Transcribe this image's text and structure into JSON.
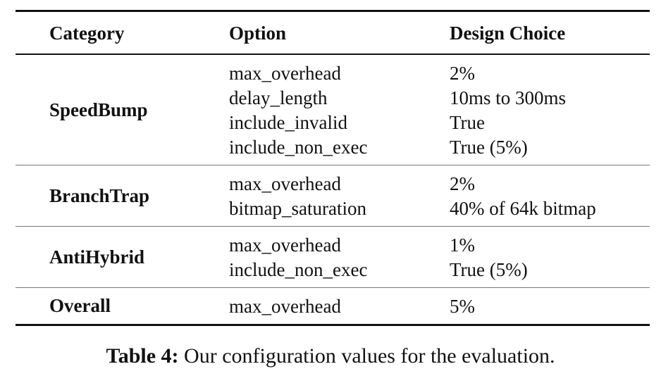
{
  "table": {
    "headers": {
      "category": "Category",
      "option": "Option",
      "choice": "Design Choice"
    },
    "groups": [
      {
        "category": "SpeedBump",
        "rows": [
          {
            "option": "max_overhead",
            "choice": "2%"
          },
          {
            "option": "delay_length",
            "choice": "10ms to 300ms"
          },
          {
            "option": "include_invalid",
            "choice": "True"
          },
          {
            "option": "include_non_exec",
            "choice": "True (5%)"
          }
        ]
      },
      {
        "category": "BranchTrap",
        "rows": [
          {
            "option": "max_overhead",
            "choice": "2%"
          },
          {
            "option": "bitmap_saturation",
            "choice": "40% of 64k bitmap"
          }
        ]
      },
      {
        "category": "AntiHybrid",
        "rows": [
          {
            "option": "max_overhead",
            "choice": "1%"
          },
          {
            "option": "include_non_exec",
            "choice": "True (5%)"
          }
        ]
      },
      {
        "category": "Overall",
        "rows": [
          {
            "option": "max_overhead",
            "choice": "5%"
          }
        ]
      }
    ]
  },
  "caption": {
    "label": "Table 4:",
    "text": "Our configuration values for the evaluation."
  }
}
